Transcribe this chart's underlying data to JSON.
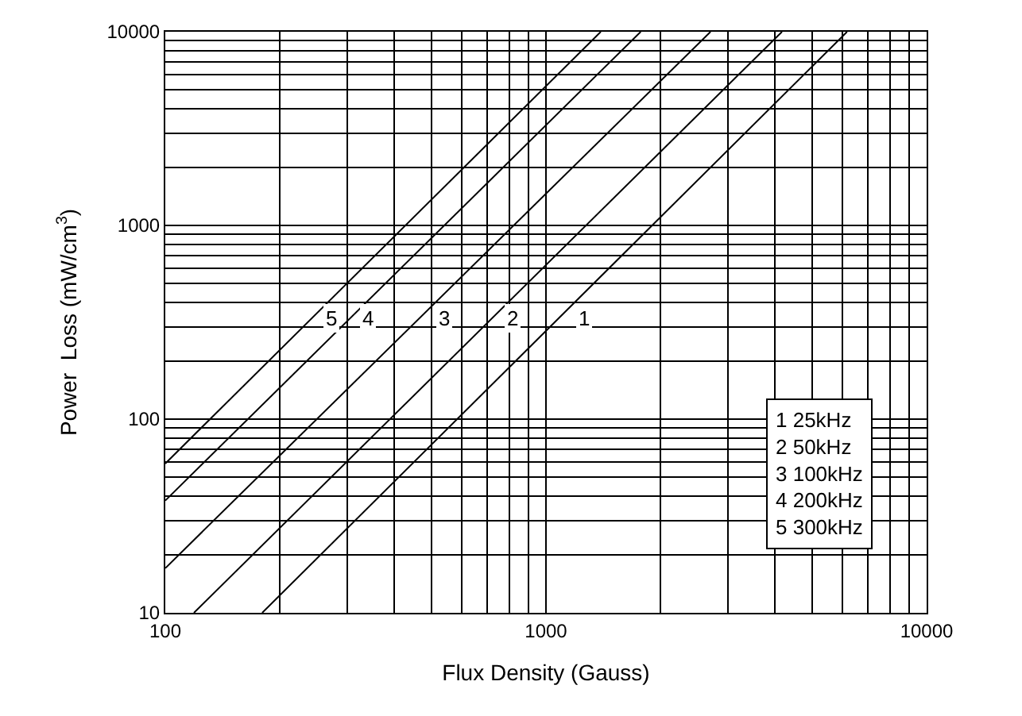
{
  "chart_data": {
    "type": "line",
    "xlabel": "Flux Density (Gauss)",
    "ylabel": "Power  Loss (mW/cm$^{3}$)",
    "log": "xy",
    "grid": true,
    "marker": "none",
    "line_style": "solid",
    "xlim": [
      100,
      10000
    ],
    "xticks": [
      100,
      1000,
      10000
    ],
    "ylim": [
      10,
      10000
    ],
    "yticks": [
      10,
      100,
      1000,
      10000
    ],
    "series": [
      {
        "color": "#000000",
        "x": [
          179.7,
          6180
        ],
        "values": [
          10,
          10000
        ]
      },
      {
        "color": "#000000",
        "x": [
          118.9,
          4169
        ],
        "values": [
          10,
          10000
        ]
      },
      {
        "color": "#000000",
        "x": [
          100,
          2706
        ],
        "values": [
          17,
          10000
        ]
      },
      {
        "color": "#000000",
        "x": [
          100,
          1774
        ],
        "values": [
          38,
          10000
        ]
      },
      {
        "color": "#000000",
        "x": [
          100,
          1393
        ],
        "values": [
          59,
          10000
        ]
      }
    ],
    "annotations": [
      {
        "text": "1",
        "x": 1265,
        "y": 330
      },
      {
        "text": "2",
        "x": 820,
        "y": 330
      },
      {
        "text": "3",
        "x": 543,
        "y": 330
      },
      {
        "text": "4",
        "x": 342,
        "y": 330
      },
      {
        "text": "5",
        "x": 272,
        "y": 330
      },
      "1 25kHz\n2 50kHz\n3 100kHz\n4 200kHz\n5 300kHz"
    ]
  }
}
